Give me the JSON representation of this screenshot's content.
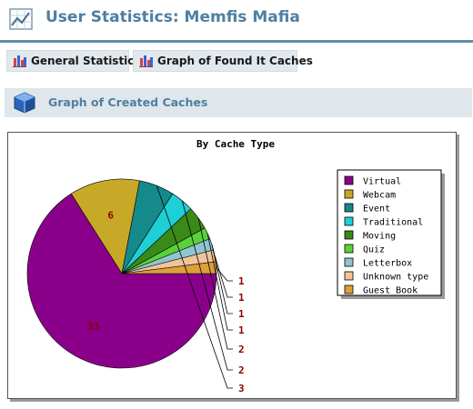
{
  "header": {
    "title": "User Statistics: Memfis Mafia",
    "icon": "line-chart-icon"
  },
  "tabs": [
    {
      "label": "General Statistics",
      "icon": "bar-chart-icon"
    },
    {
      "label": "Graph of Found It Caches",
      "icon": "bar-chart-icon"
    }
  ],
  "section": {
    "title": "Graph of Created Caches",
    "icon": "cube-icon"
  },
  "chart_data": {
    "type": "pie",
    "title": "By Cache Type",
    "legend_position": "right",
    "slices": [
      {
        "label": "Virtual",
        "value": 33,
        "color": "#8b008b"
      },
      {
        "label": "Webcam",
        "value": 6,
        "color": "#c8a927"
      },
      {
        "label": "Event",
        "value": 3,
        "color": "#158a8a"
      },
      {
        "label": "Traditional",
        "value": 2,
        "color": "#1fcfd6"
      },
      {
        "label": "Moving",
        "value": 2,
        "color": "#3a8a1a"
      },
      {
        "label": "Quiz",
        "value": 1,
        "color": "#5ad13a"
      },
      {
        "label": "Letterbox",
        "value": 1,
        "color": "#8fc5cf"
      },
      {
        "label": "Unknown type",
        "value": 1,
        "color": "#f1c49c"
      },
      {
        "label": "Guest Book",
        "value": 1,
        "color": "#dca037"
      }
    ]
  }
}
